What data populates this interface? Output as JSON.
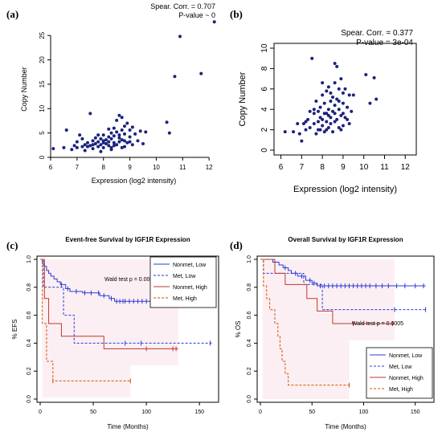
{
  "panels": {
    "a": "(a)",
    "b": "(b)",
    "c": "(c)",
    "d": "(d)"
  },
  "colors": {
    "point": "#1a237e",
    "blue": "#2a3bd6",
    "red": "#c0392b",
    "orange": "#d35400",
    "shade_blue": "#f3e6f6",
    "shade_red": "#fbe3ea"
  },
  "chart_data": [
    {
      "id": "a",
      "type": "scatter",
      "title": "",
      "xlabel": "Expression (log2 intensity)",
      "ylabel": "Copy Number",
      "xlim": [
        6,
        12.3
      ],
      "ylim": [
        0,
        28
      ],
      "xticks": [
        "6",
        "7",
        "8",
        "9",
        "10",
        "11",
        "12"
      ],
      "yticks": [
        "0",
        "5",
        "10",
        "15",
        "20",
        "25"
      ],
      "annotations": [
        "Spear. Corr. = 0.707",
        "P-value ~ 0"
      ],
      "points": [
        [
          6.1,
          1.8
        ],
        [
          6.6,
          5.6
        ],
        [
          6.5,
          2.0
        ],
        [
          6.8,
          1.6
        ],
        [
          6.9,
          2.4
        ],
        [
          7.0,
          2.0
        ],
        [
          7.1,
          4.6
        ],
        [
          7.2,
          2.2
        ],
        [
          7.3,
          2.6
        ],
        [
          7.4,
          3.0
        ],
        [
          7.5,
          2.4
        ],
        [
          7.5,
          9.0
        ],
        [
          7.6,
          3.4
        ],
        [
          7.6,
          1.8
        ],
        [
          7.7,
          2.8
        ],
        [
          7.7,
          4.0
        ],
        [
          7.8,
          3.2
        ],
        [
          7.8,
          2.2
        ],
        [
          7.9,
          3.8
        ],
        [
          7.9,
          2.6
        ],
        [
          8.0,
          4.6
        ],
        [
          8.0,
          3.0
        ],
        [
          8.0,
          2.0
        ],
        [
          8.1,
          3.6
        ],
        [
          8.1,
          2.8
        ],
        [
          8.2,
          4.2
        ],
        [
          8.2,
          3.2
        ],
        [
          8.2,
          2.4
        ],
        [
          8.3,
          5.0
        ],
        [
          8.3,
          3.8
        ],
        [
          8.3,
          1.6
        ],
        [
          8.4,
          6.0
        ],
        [
          8.4,
          4.4
        ],
        [
          8.4,
          3.0
        ],
        [
          8.5,
          7.6
        ],
        [
          8.5,
          5.2
        ],
        [
          8.5,
          2.6
        ],
        [
          8.6,
          8.6
        ],
        [
          8.6,
          4.0
        ],
        [
          8.6,
          3.2
        ],
        [
          8.7,
          8.2
        ],
        [
          8.7,
          5.6
        ],
        [
          8.7,
          3.6
        ],
        [
          8.8,
          6.4
        ],
        [
          8.8,
          4.8
        ],
        [
          8.8,
          2.2
        ],
        [
          8.9,
          7.0
        ],
        [
          8.9,
          3.0
        ],
        [
          9.0,
          5.6
        ],
        [
          9.0,
          4.2
        ],
        [
          9.1,
          6.2
        ],
        [
          9.1,
          2.6
        ],
        [
          9.2,
          4.8
        ],
        [
          9.3,
          3.4
        ],
        [
          9.4,
          5.4
        ],
        [
          9.5,
          2.8
        ],
        [
          9.6,
          5.2
        ],
        [
          7.2,
          3.8
        ],
        [
          7.4,
          2.2
        ],
        [
          7.6,
          2.6
        ],
        [
          7.8,
          4.6
        ],
        [
          8.0,
          3.4
        ],
        [
          8.2,
          5.8
        ],
        [
          8.4,
          2.4
        ],
        [
          8.6,
          4.6
        ],
        [
          8.8,
          3.4
        ],
        [
          9.0,
          3.2
        ],
        [
          10.4,
          7.2
        ],
        [
          10.5,
          5.0
        ],
        [
          10.7,
          16.6
        ],
        [
          10.9,
          24.8
        ],
        [
          11.7,
          17.2
        ],
        [
          12.2,
          27.8
        ],
        [
          7.0,
          3.2
        ],
        [
          7.3,
          1.4
        ],
        [
          7.9,
          1.2
        ],
        [
          8.3,
          2.0
        ],
        [
          8.7,
          2.0
        ]
      ]
    },
    {
      "id": "b",
      "type": "scatter",
      "title": "",
      "xlabel": "Expression (log2 intensity)",
      "ylabel": "Copy Number",
      "xlim": [
        5.9,
        12.3
      ],
      "ylim": [
        0,
        10
      ],
      "xticks": [
        "6",
        "7",
        "8",
        "9",
        "10",
        "11",
        "12"
      ],
      "yticks": [
        "0",
        "2",
        "4",
        "6",
        "8",
        "10"
      ],
      "annotations": [
        "Spear. Corr. = 0.377",
        "P-value = 3e-04"
      ],
      "points": [
        [
          6.2,
          1.8
        ],
        [
          6.6,
          1.8
        ],
        [
          6.8,
          2.6
        ],
        [
          6.9,
          1.6
        ],
        [
          7.0,
          0.9
        ],
        [
          7.1,
          2.6
        ],
        [
          7.2,
          2.0
        ],
        [
          7.3,
          3.0
        ],
        [
          7.4,
          2.2
        ],
        [
          7.5,
          9.0
        ],
        [
          7.6,
          3.6
        ],
        [
          7.6,
          2.6
        ],
        [
          7.7,
          1.6
        ],
        [
          7.7,
          4.8
        ],
        [
          7.8,
          2.8
        ],
        [
          7.8,
          3.8
        ],
        [
          7.9,
          2.0
        ],
        [
          7.9,
          4.2
        ],
        [
          8.0,
          3.0
        ],
        [
          8.0,
          5.4
        ],
        [
          8.0,
          2.4
        ],
        [
          8.1,
          3.6
        ],
        [
          8.1,
          4.6
        ],
        [
          8.2,
          2.8
        ],
        [
          8.2,
          5.8
        ],
        [
          8.2,
          2.0
        ],
        [
          8.3,
          3.4
        ],
        [
          8.3,
          4.0
        ],
        [
          8.3,
          6.2
        ],
        [
          8.4,
          2.6
        ],
        [
          8.4,
          4.8
        ],
        [
          8.4,
          3.2
        ],
        [
          8.5,
          5.2
        ],
        [
          8.5,
          3.8
        ],
        [
          8.5,
          1.8
        ],
        [
          8.6,
          8.5
        ],
        [
          8.6,
          6.6
        ],
        [
          8.6,
          4.4
        ],
        [
          8.6,
          2.8
        ],
        [
          8.7,
          8.2
        ],
        [
          8.7,
          5.0
        ],
        [
          8.7,
          3.0
        ],
        [
          8.8,
          6.0
        ],
        [
          8.8,
          4.0
        ],
        [
          8.8,
          2.2
        ],
        [
          8.9,
          7.0
        ],
        [
          8.9,
          3.4
        ],
        [
          9.0,
          5.6
        ],
        [
          9.0,
          4.6
        ],
        [
          9.0,
          2.4
        ],
        [
          9.1,
          6.0
        ],
        [
          9.1,
          3.2
        ],
        [
          9.2,
          4.2
        ],
        [
          9.3,
          2.6
        ],
        [
          9.3,
          5.4
        ],
        [
          9.4,
          3.8
        ],
        [
          9.5,
          5.4
        ],
        [
          10.1,
          7.4
        ],
        [
          10.3,
          4.6
        ],
        [
          10.5,
          7.1
        ],
        [
          10.6,
          5.0
        ],
        [
          7.4,
          3.8
        ],
        [
          7.6,
          4.0
        ],
        [
          7.8,
          2.0
        ],
        [
          8.0,
          6.6
        ],
        [
          8.2,
          3.6
        ],
        [
          8.4,
          5.6
        ],
        [
          8.6,
          3.6
        ],
        [
          8.8,
          4.8
        ],
        [
          9.0,
          3.6
        ],
        [
          7.2,
          2.8
        ],
        [
          7.9,
          3.2
        ],
        [
          8.1,
          1.8
        ],
        [
          8.3,
          2.2
        ],
        [
          8.9,
          2.0
        ],
        [
          9.2,
          3.0
        ]
      ]
    },
    {
      "id": "c",
      "type": "line",
      "title": "Event-free Survival by IGF1R Expression",
      "xlabel": "Time (Months)",
      "ylabel": "% EFS",
      "xlim": [
        0,
        165
      ],
      "ylim": [
        0,
        1
      ],
      "xticks": [
        "0",
        "50",
        "100",
        "150"
      ],
      "yticks": [
        "0.0",
        "0.2",
        "0.4",
        "0.6",
        "0.8",
        "1.0"
      ],
      "annotation": "Wald test p = 0.0005",
      "legend_position": "top-right",
      "series": [
        {
          "name": "Nonmet, Low",
          "style": "solid",
          "color_key": "blue",
          "steps": [
            [
              0,
              1.0
            ],
            [
              2,
              0.97
            ],
            [
              4,
              0.95
            ],
            [
              6,
              0.92
            ],
            [
              8,
              0.9
            ],
            [
              10,
              0.88
            ],
            [
              13,
              0.86
            ],
            [
              16,
              0.84
            ],
            [
              19,
              0.82
            ],
            [
              24,
              0.79
            ],
            [
              28,
              0.77
            ],
            [
              40,
              0.76
            ],
            [
              56,
              0.74
            ],
            [
              65,
              0.72
            ],
            [
              70,
              0.7
            ],
            [
              160,
              0.7
            ]
          ],
          "censor": [
            20,
            26,
            34,
            42,
            48,
            55,
            60,
            67,
            72,
            75,
            78,
            80,
            84,
            88,
            92,
            96,
            100,
            104,
            108,
            114,
            120,
            128,
            136,
            145,
            155
          ]
        },
        {
          "name": "Met, Low",
          "style": "dashed",
          "color_key": "blue",
          "steps": [
            [
              0,
              1.0
            ],
            [
              3,
              0.8
            ],
            [
              22,
              0.6
            ],
            [
              32,
              0.4
            ],
            [
              162,
              0.4
            ]
          ],
          "censor": [
            80,
            95,
            160
          ]
        },
        {
          "name": "Nonmet, High",
          "style": "solid",
          "color_key": "red",
          "steps": [
            [
              0,
              1.0
            ],
            [
              4,
              0.72
            ],
            [
              8,
              0.54
            ],
            [
              20,
              0.45
            ],
            [
              35,
              0.45
            ],
            [
              60,
              0.36
            ],
            [
              130,
              0.36
            ]
          ],
          "censor": [
            100,
            125,
            128
          ]
        },
        {
          "name": "Met, High",
          "style": "dashed",
          "color_key": "orange",
          "steps": [
            [
              0,
              1.0
            ],
            [
              2,
              0.54
            ],
            [
              6,
              0.27
            ],
            [
              12,
              0.13
            ],
            [
              85,
              0.13
            ]
          ],
          "censor": [
            12,
            85
          ]
        }
      ]
    },
    {
      "id": "d",
      "type": "line",
      "title": "Overall Survival by IGF1R Expression",
      "xlabel": "Time (Months)",
      "ylabel": "% OS",
      "xlim": [
        0,
        165
      ],
      "ylim": [
        0,
        1
      ],
      "xticks": [
        "0",
        "50",
        "100",
        "150"
      ],
      "yticks": [
        "0.0",
        "0.2",
        "0.4",
        "0.6",
        "0.8",
        "1.0"
      ],
      "annotation": "Wald test p = 0.0005",
      "legend_position": "bottom-right",
      "series": [
        {
          "name": "Nonmet, Low",
          "style": "solid",
          "color_key": "blue",
          "steps": [
            [
              0,
              1.0
            ],
            [
              12,
              0.98
            ],
            [
              18,
              0.96
            ],
            [
              22,
              0.94
            ],
            [
              27,
              0.92
            ],
            [
              30,
              0.9
            ],
            [
              36,
              0.88
            ],
            [
              44,
              0.85
            ],
            [
              50,
              0.83
            ],
            [
              55,
              0.81
            ],
            [
              160,
              0.81
            ]
          ],
          "censor": [
            24,
            34,
            40,
            48,
            52,
            58,
            62,
            66,
            70,
            74,
            78,
            82,
            86,
            90,
            94,
            98,
            102,
            106,
            112,
            118,
            124,
            132,
            140,
            150,
            158
          ]
        },
        {
          "name": "Met, Low",
          "style": "dashed",
          "color_key": "blue",
          "steps": [
            [
              0,
              1.0
            ],
            [
              3,
              0.9
            ],
            [
              42,
              0.82
            ],
            [
              60,
              0.64
            ],
            [
              160,
              0.64
            ]
          ],
          "censor": [
            130,
            160
          ]
        },
        {
          "name": "Nonmet, High",
          "style": "solid",
          "color_key": "red",
          "steps": [
            [
              0,
              1.0
            ],
            [
              14,
              0.9
            ],
            [
              24,
              0.82
            ],
            [
              45,
              0.72
            ],
            [
              55,
              0.63
            ],
            [
              70,
              0.54
            ],
            [
              130,
              0.54
            ]
          ],
          "censor": [
            90,
            128
          ]
        },
        {
          "name": "Met, High",
          "style": "dashed",
          "color_key": "orange",
          "steps": [
            [
              0,
              1.0
            ],
            [
              3,
              0.81
            ],
            [
              6,
              0.72
            ],
            [
              9,
              0.64
            ],
            [
              14,
              0.54
            ],
            [
              17,
              0.45
            ],
            [
              19,
              0.36
            ],
            [
              21,
              0.27
            ],
            [
              24,
              0.18
            ],
            [
              27,
              0.1
            ],
            [
              86,
              0.1
            ]
          ],
          "censor": [
            86
          ]
        }
      ]
    }
  ]
}
